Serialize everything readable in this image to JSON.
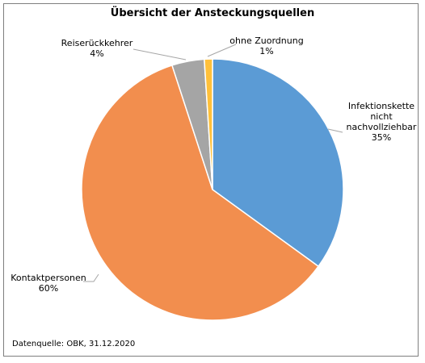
{
  "chart_data": {
    "type": "pie",
    "title": "Übersicht der Ansteckungsquellen",
    "start_angle_deg": 0,
    "direction": "clockwise",
    "slices": [
      {
        "label_lines": [
          "Infektionskette",
          "nicht",
          "nachvollziehbar"
        ],
        "value": 35,
        "value_label": "35%",
        "color": "#5b9bd5"
      },
      {
        "label_lines": [
          "Kontaktpersonen"
        ],
        "value": 60,
        "value_label": "60%",
        "color": "#f28e4e"
      },
      {
        "label_lines": [
          "Reiserückkehrer"
        ],
        "value": 4,
        "value_label": "4%",
        "color": "#a5a5a5"
      },
      {
        "label_lines": [
          "ohne Zuordnung"
        ],
        "value": 1,
        "value_label": "1%",
        "color": "#ffc03a"
      }
    ],
    "source": "Datenquelle: OBK, 31.12.2020"
  }
}
